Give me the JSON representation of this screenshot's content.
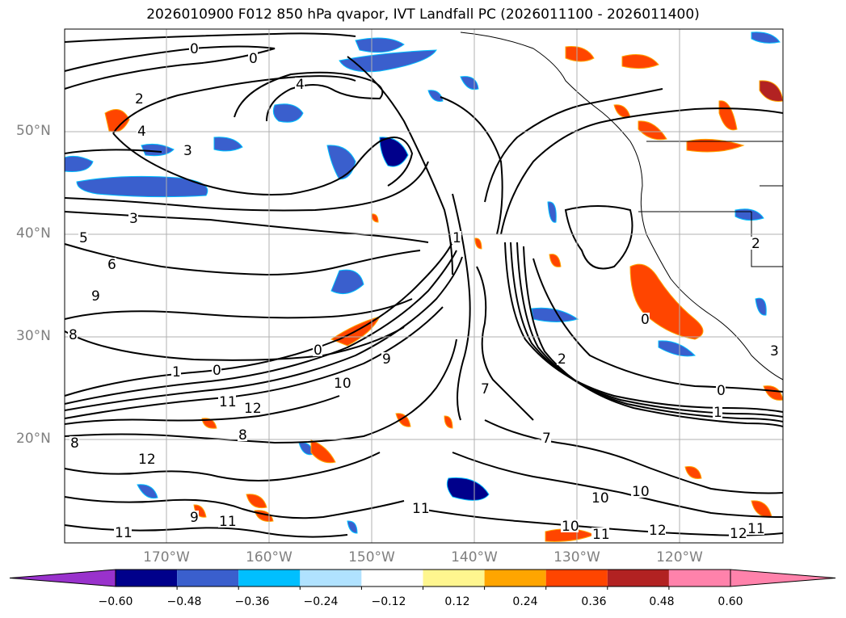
{
  "title": "2026010900 F012 850 hPa qvapor, IVT Landfall PC (2026011100 - 2026011400)",
  "map": {
    "lat_labels": [
      "50°N",
      "40°N",
      "30°N",
      "20°N"
    ],
    "lon_labels": [
      "170°W",
      "160°W",
      "150°W",
      "140°W",
      "130°W",
      "120°W"
    ],
    "contour_labels": [
      "0",
      "0",
      "0",
      "2",
      "4",
      "3",
      "4",
      "3",
      "5",
      "6",
      "9",
      "8",
      "1",
      "0",
      "9",
      "10",
      "12",
      "11",
      "8",
      "12",
      "11",
      "9",
      "11",
      "11",
      "8",
      "7",
      "10",
      "11",
      "10",
      "12",
      "10",
      "12",
      "11",
      "1",
      "0",
      "2",
      "1",
      "7",
      "0",
      "2",
      "3"
    ]
  },
  "colorbar": {
    "ticks": [
      "−0.60",
      "−0.48",
      "−0.36",
      "−0.24",
      "−0.12",
      "0.12",
      "0.24",
      "0.36",
      "0.48",
      "0.60"
    ],
    "colors": {
      "under": "#9932cc",
      "bins": [
        "#00008b",
        "#3a5fcd",
        "#00bfff",
        "#b0e2ff",
        "#ffffff",
        "#fff68f",
        "#ffa500",
        "#ff4500",
        "#b22222",
        "#ff82ab"
      ],
      "over": "#ff82ab"
    }
  }
}
